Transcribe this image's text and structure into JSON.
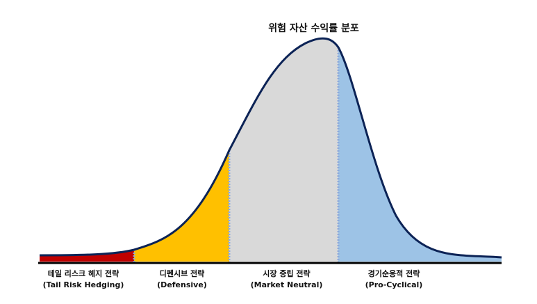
{
  "title": "위험 자산 수익률 분포",
  "segments": [
    {
      "ko": "테일 리스크 헤지 전략",
      "en": "(Tail Risk Hedging)",
      "color": "#c00000"
    },
    {
      "ko": "디펜시브 전략",
      "en": "(Defensive)",
      "color": "#ffc000"
    },
    {
      "ko": "시장 중립 전략",
      "en": "(Market Neutral)",
      "color": "#d9d9d9"
    },
    {
      "ko": "경기순응적 전략",
      "en": "(Pro-Cyclical)",
      "color": "#9dc3e6"
    }
  ],
  "outline_color": "#0c2356"
}
